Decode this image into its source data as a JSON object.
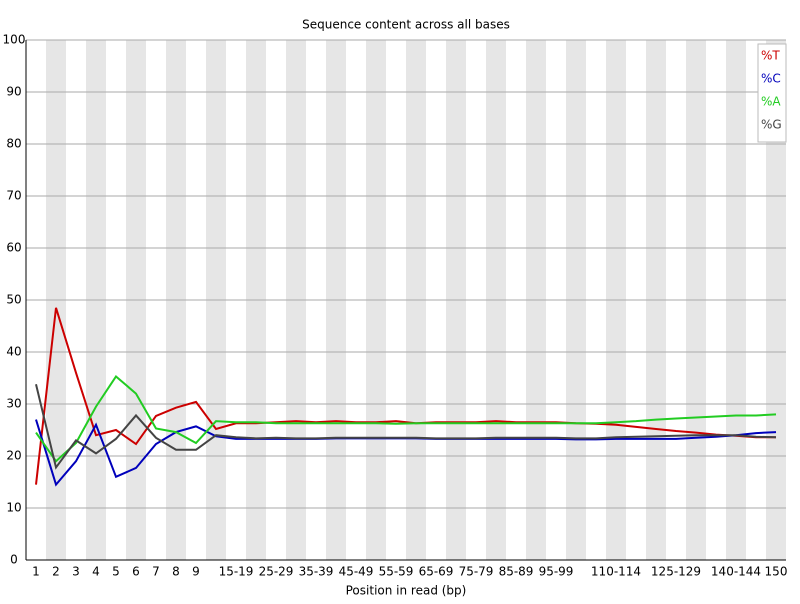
{
  "chart_data": {
    "type": "line",
    "title": "Sequence content across all bases",
    "x_label": "Position in read (bp)",
    "categories": [
      "1",
      "2",
      "3",
      "4",
      "5",
      "6",
      "7",
      "8",
      "9",
      null,
      "15-19",
      null,
      "25-29",
      null,
      "35-39",
      null,
      "45-49",
      null,
      "55-59",
      null,
      "65-69",
      null,
      "75-79",
      null,
      "85-89",
      null,
      "95-99",
      null,
      null,
      "110-114",
      null,
      null,
      "125-129",
      null,
      null,
      "140-144",
      null,
      "150"
    ],
    "series": [
      {
        "name": "%T",
        "color": "#cc0000",
        "values": [
          14.5,
          48.5,
          36,
          24,
          25,
          22.3,
          27.7,
          29.3,
          30.4,
          25.2,
          26.3,
          26.3,
          26.5,
          26.7,
          26.5,
          26.7,
          26.5,
          26.5,
          26.7,
          26.3,
          26.5,
          26.5,
          26.5,
          26.7,
          26.5,
          26.5,
          26.5,
          26.3,
          26.2,
          26.0,
          25.6,
          25.2,
          24.8,
          24.5,
          24.1,
          23.9,
          23.6,
          23.6
        ]
      },
      {
        "name": "%C",
        "color": "#0000bb",
        "values": [
          27,
          14.5,
          19,
          26,
          16,
          17.7,
          22.3,
          24.6,
          25.7,
          23.8,
          23.3,
          23.3,
          23.3,
          23.3,
          23.3,
          23.4,
          23.4,
          23.4,
          23.4,
          23.4,
          23.3,
          23.3,
          23.3,
          23.3,
          23.3,
          23.3,
          23.3,
          23.2,
          23.2,
          23.3,
          23.3,
          23.3,
          23.3,
          23.5,
          23.7,
          24.0,
          24.4,
          24.6
        ]
      },
      {
        "name": "%A",
        "color": "#22cc22",
        "values": [
          24.5,
          19,
          22.5,
          29.5,
          35.3,
          32,
          25.3,
          24.6,
          22.5,
          26.7,
          26.5,
          26.5,
          26.3,
          26.3,
          26.3,
          26.3,
          26.3,
          26.3,
          26.2,
          26.3,
          26.3,
          26.3,
          26.3,
          26.3,
          26.3,
          26.3,
          26.3,
          26.3,
          26.3,
          26.5,
          26.7,
          27.0,
          27.2,
          27.4,
          27.6,
          27.8,
          27.8,
          28.0
        ]
      },
      {
        "name": "%G",
        "color": "#444444",
        "values": [
          33.8,
          17.8,
          23,
          20.5,
          23.3,
          27.8,
          23.5,
          21.2,
          21.2,
          24.0,
          23.6,
          23.4,
          23.5,
          23.4,
          23.4,
          23.5,
          23.5,
          23.5,
          23.5,
          23.5,
          23.4,
          23.4,
          23.4,
          23.5,
          23.5,
          23.5,
          23.5,
          23.4,
          23.4,
          23.6,
          23.7,
          23.8,
          23.9,
          24.0,
          24.0,
          24.0,
          23.7,
          23.6
        ]
      }
    ],
    "ylim": [
      0,
      100
    ],
    "yticks": [
      0,
      10,
      20,
      30,
      40,
      50,
      60,
      70,
      80,
      90,
      100
    ],
    "grid": true,
    "legend": "top-right"
  }
}
